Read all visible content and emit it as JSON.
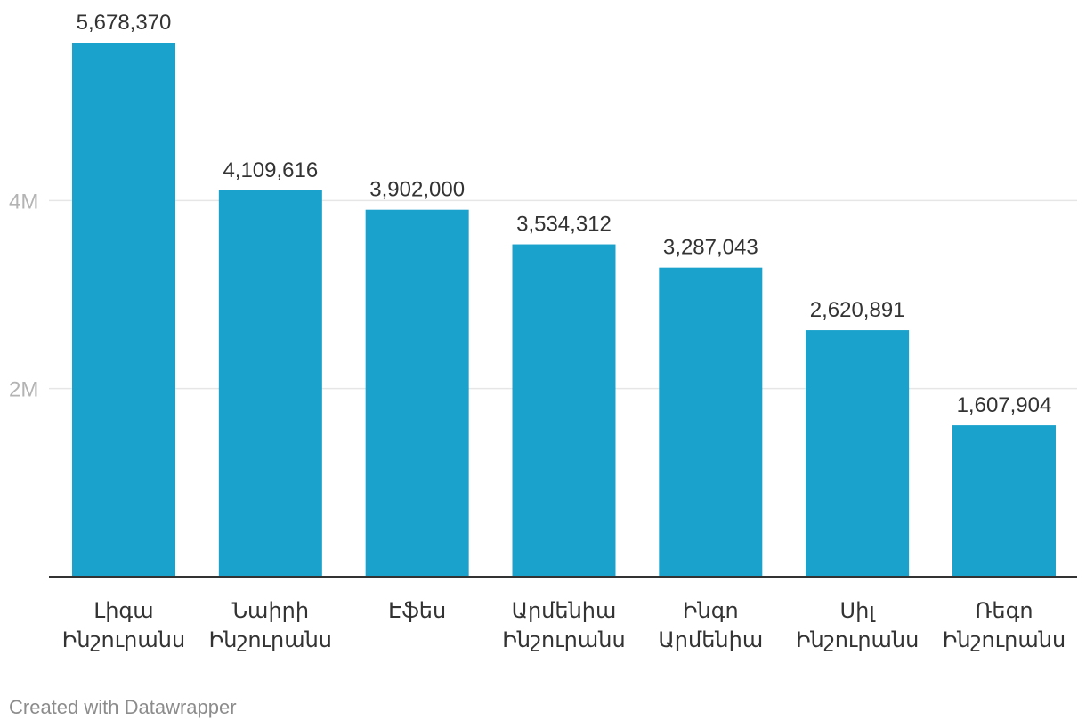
{
  "chart_data": {
    "type": "bar",
    "categories": [
      [
        "Լիգա",
        "Ինշուրանս"
      ],
      [
        "Նաիրի",
        "Ինշուրանս"
      ],
      [
        "Էֆես"
      ],
      [
        "Արմենիա",
        "Ինշուրանս"
      ],
      [
        "Ինգո",
        "Արմենիա"
      ],
      [
        "Սիլ",
        "Ինշուրանս"
      ],
      [
        "Ռեգո",
        "Ինշուրանս"
      ]
    ],
    "values": [
      5678370,
      4109616,
      3902000,
      3534312,
      3287043,
      2620891,
      1607904
    ],
    "value_labels": [
      "5,678,370",
      "4,109,616",
      "3,902,000",
      "3,534,312",
      "3,287,043",
      "2,620,891",
      "1,607,904"
    ],
    "yticks": [
      {
        "value": 2000000,
        "label": "2M"
      },
      {
        "value": 4000000,
        "label": "4M"
      }
    ],
    "ylim": [
      0,
      5678370
    ],
    "bar_color": "#1aa1cc",
    "grid": true
  },
  "footer": {
    "credit": "Created with Datawrapper"
  }
}
